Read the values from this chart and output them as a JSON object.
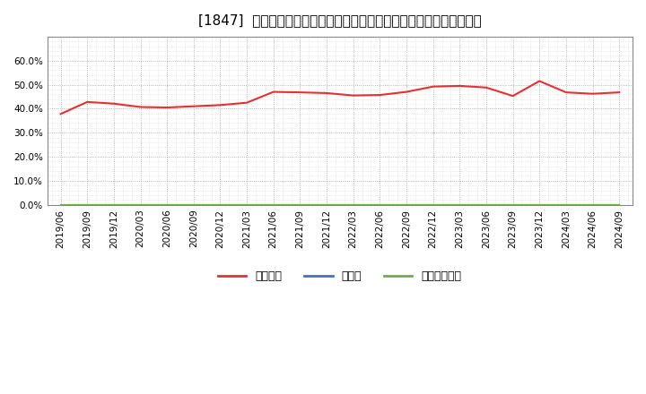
{
  "title": "[1847]  自己資本、のれん、繰延税金資産の総資産に対する比率の推移",
  "x_labels": [
    "2019/06",
    "2019/09",
    "2019/12",
    "2020/03",
    "2020/06",
    "2020/09",
    "2020/12",
    "2021/03",
    "2021/06",
    "2021/09",
    "2021/12",
    "2022/03",
    "2022/06",
    "2022/09",
    "2022/12",
    "2023/03",
    "2023/06",
    "2023/09",
    "2023/12",
    "2024/03",
    "2024/06",
    "2024/09"
  ],
  "equity_ratio": [
    0.378,
    0.428,
    0.421,
    0.407,
    0.405,
    0.41,
    0.415,
    0.425,
    0.47,
    0.468,
    0.465,
    0.455,
    0.457,
    0.47,
    0.492,
    0.495,
    0.488,
    0.453,
    0.515,
    0.468,
    0.462,
    0.468
  ],
  "noren_ratio": [
    0,
    0,
    0,
    0,
    0,
    0,
    0,
    0,
    0,
    0,
    0,
    0,
    0,
    0,
    0,
    0,
    0,
    0,
    0,
    0,
    0,
    0
  ],
  "deferred_tax_ratio": [
    0,
    0,
    0,
    0,
    0,
    0,
    0,
    0,
    0,
    0,
    0,
    0,
    0,
    0,
    0,
    0,
    0,
    0,
    0,
    0,
    0,
    0
  ],
  "equity_color": "#e83030",
  "noren_color": "#4472c4",
  "deferred_tax_color": "#70ad47",
  "background_color": "#ffffff",
  "plot_bg_color": "#ffffff",
  "grid_color": "#aaaaaa",
  "ylim": [
    0.0,
    0.7
  ],
  "yticks": [
    0.0,
    0.1,
    0.2,
    0.3,
    0.4,
    0.5,
    0.6
  ],
  "legend_labels": [
    "自己資本",
    "のれん",
    "繰延税金資産"
  ],
  "title_fontsize": 11,
  "tick_fontsize": 7.5
}
